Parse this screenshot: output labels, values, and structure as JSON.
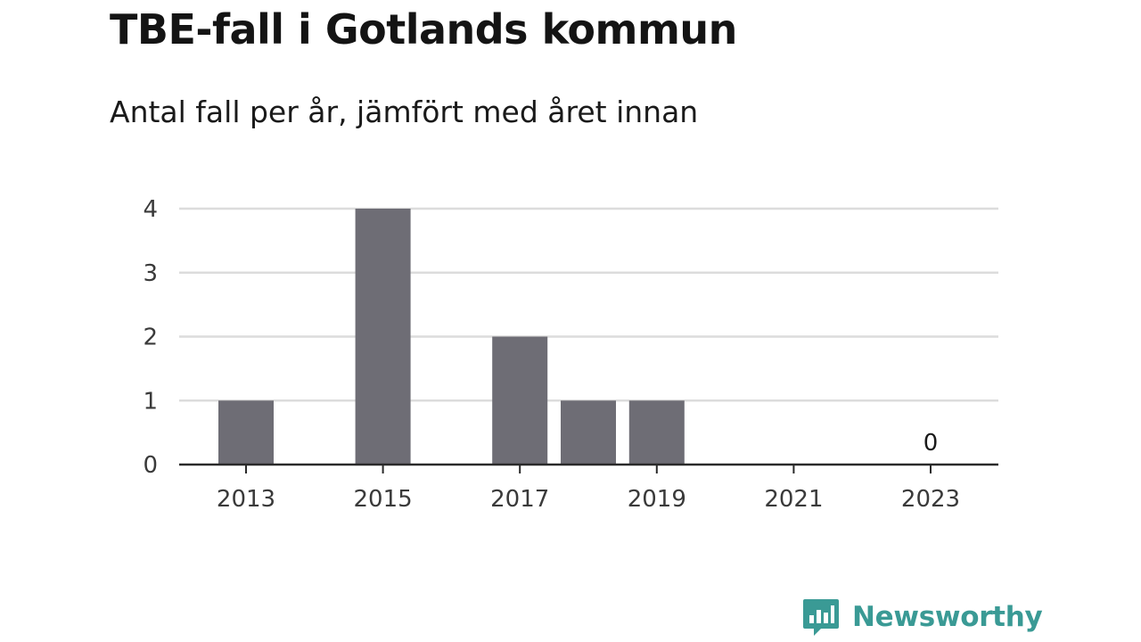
{
  "title": "TBE-fall i Gotlands kommun",
  "subtitle": "Antal fall per år, jämfört med året innan",
  "brand": {
    "name": "Newsworthy",
    "color": "#3a9a95",
    "icon": "newsworthy-logo-icon"
  },
  "colors": {
    "bar": "#6e6d75",
    "grid": "#dcdcdc",
    "axis": "#2a2a2a"
  },
  "chart_data": {
    "type": "bar",
    "title": "TBE-fall i Gotlands kommun",
    "subtitle": "Antal fall per år, jämfört med året innan",
    "xlabel": "",
    "ylabel": "",
    "ylim": [
      0,
      4
    ],
    "yticks": [
      0,
      1,
      2,
      3,
      4
    ],
    "grid": true,
    "categories": [
      "2013",
      "2014",
      "2015",
      "2016",
      "2017",
      "2018",
      "2019",
      "2020",
      "2021",
      "2022",
      "2023"
    ],
    "xtick_labels": [
      "2013",
      "2015",
      "2017",
      "2019",
      "2021",
      "2023"
    ],
    "values": [
      1,
      0,
      4,
      0,
      2,
      1,
      1,
      0,
      0,
      0,
      0
    ],
    "data_labels": [
      {
        "category": "2023",
        "text": "0"
      }
    ]
  }
}
